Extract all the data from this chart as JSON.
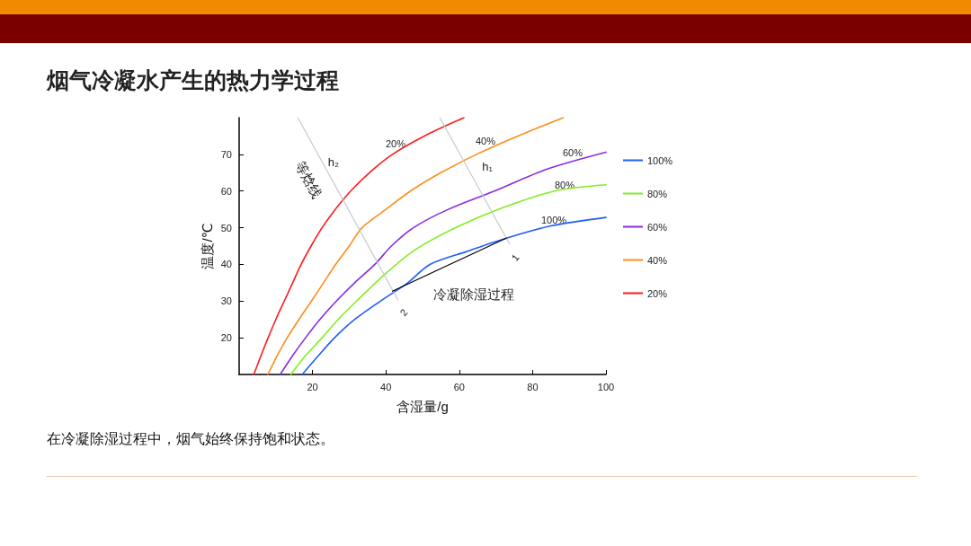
{
  "chart_data": {
    "type": "line",
    "title": "烟气冷凝水产生的热力学过程",
    "xlabel": "含湿量/g",
    "ylabel": "温度/℃",
    "xlim": [
      0,
      100
    ],
    "ylim": [
      10,
      80
    ],
    "xticks": [
      20,
      40,
      60,
      80,
      100
    ],
    "yticks": [
      20,
      30,
      40,
      50,
      60,
      70
    ],
    "grid": false,
    "legend": "right",
    "marker": "none",
    "line_style": "solid",
    "series": [
      {
        "name": "100%",
        "color": "#1f5cff",
        "x": [
          17.2,
          21.5,
          26,
          31.5,
          38.5,
          46,
          52,
          62,
          73,
          85,
          100
        ],
        "values": [
          10,
          15,
          20,
          25,
          30,
          35,
          40,
          43.5,
          47.2,
          50.5,
          52.8
        ]
      },
      {
        "name": "80%",
        "color": "#80ee20",
        "x": [
          14.1,
          18,
          22.6,
          27,
          32,
          39.8,
          48,
          59,
          72,
          86,
          100
        ],
        "values": [
          10,
          15,
          20,
          25,
          30,
          37.4,
          44,
          50,
          55.5,
          60,
          61.7
        ]
      },
      {
        "name": "60%",
        "color": "#8a2be2",
        "x": [
          11.2,
          14.5,
          18.1,
          22,
          26.5,
          31.5,
          37,
          41.5,
          47.5,
          57,
          69.6,
          84,
          100
        ],
        "values": [
          10,
          15,
          20,
          25,
          30,
          35,
          40,
          45,
          50,
          55,
          60,
          66,
          70.6
        ]
      },
      {
        "name": "40%",
        "color": "#ff8c1a",
        "x": [
          7.8,
          10.3,
          13.1,
          16.3,
          19.7,
          23,
          26.3,
          30,
          33.5,
          40,
          46.7,
          55,
          64.7,
          76,
          88.4
        ],
        "values": [
          10,
          15,
          20,
          25,
          30,
          35,
          40,
          45,
          50,
          55,
          60,
          65,
          70,
          75,
          80
        ]
      },
      {
        "name": "20%",
        "color": "#ff1a1a",
        "x": [
          4,
          5.9,
          7.9,
          10,
          12.3,
          14.6,
          16.9,
          19.6,
          22.6,
          26.2,
          30.4,
          35.5,
          41.8,
          50.5,
          61.3
        ],
        "values": [
          10,
          15,
          20,
          25,
          30,
          35,
          40,
          45,
          50,
          55,
          60,
          65,
          70,
          75,
          80
        ]
      },
      {
        "color": "#c8c8c8",
        "x": [
          16,
          43.3
        ],
        "values": [
          80,
          30.3
        ]
      },
      {
        "color": "#c8c8c8",
        "x": [
          54.7,
          73.7
        ],
        "values": [
          80,
          45.6
        ]
      },
      {
        "color": "#000000",
        "x": [
          72.9,
          41.8
        ],
        "values": [
          47.2,
          32.7
        ]
      }
    ],
    "annotations": [
      "20%",
      "40%",
      "60%",
      "80%",
      "100%",
      "h₂",
      "h₁",
      "等焓线",
      "冷凝除湿过程",
      "1",
      "2",
      "在冷凝除湿过程中，烟气始终保持饱和状态。"
    ]
  }
}
